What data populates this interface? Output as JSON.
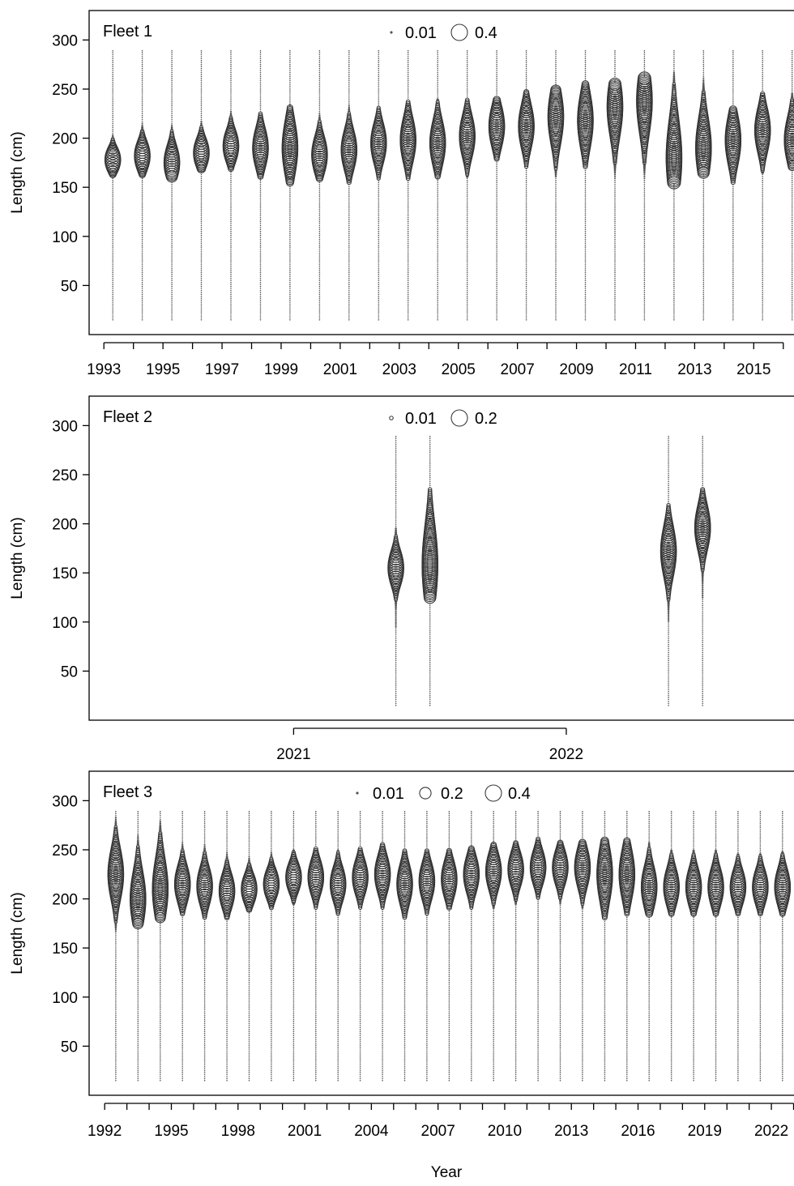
{
  "chart_data": [
    {
      "type": "scatter",
      "title": "Fleet 1",
      "ylabel": "Length (cm)",
      "xlabel": "",
      "ylim": [
        0,
        330
      ],
      "yticks": [
        50,
        100,
        150,
        200,
        250,
        300
      ],
      "xlim": [
        1992.5,
        2016.5
      ],
      "xtick_labels": [
        "1993",
        "1995",
        "1997",
        "1999",
        "2001",
        "2003",
        "2005",
        "2007",
        "2009",
        "2011",
        "2013",
        "2015"
      ],
      "xtick_values": [
        1993,
        1995,
        1997,
        1999,
        2001,
        2003,
        2005,
        2007,
        2009,
        2011,
        2013,
        2015
      ],
      "length_bins": [
        15,
        290
      ],
      "legend": {
        "entries": [
          {
            "label": "0.01",
            "value": 0.01
          },
          {
            "label": "0.4",
            "value": 0.4
          }
        ],
        "placement": "top-center"
      },
      "years": [
        {
          "x": 1993.3,
          "mode": 178,
          "sd": 8,
          "lo": 163,
          "hi": 222
        },
        {
          "x": 1994.3,
          "mode": 182,
          "sd": 10,
          "lo": 163,
          "hi": 230
        },
        {
          "x": 1995.3,
          "mode": 175,
          "sd": 12,
          "lo": 160,
          "hi": 230
        },
        {
          "x": 1996.3,
          "mode": 185,
          "sd": 10,
          "lo": 168,
          "hi": 225
        },
        {
          "x": 1997.3,
          "mode": 192,
          "sd": 11,
          "lo": 168,
          "hi": 228
        },
        {
          "x": 1998.3,
          "mode": 190,
          "sd": 14,
          "lo": 160,
          "hi": 225
        },
        {
          "x": 1999.3,
          "mode": 190,
          "sd": 20,
          "lo": 155,
          "hi": 232
        },
        {
          "x": 2000.3,
          "mode": 183,
          "sd": 13,
          "lo": 158,
          "hi": 235
        },
        {
          "x": 2001.3,
          "mode": 188,
          "sd": 14,
          "lo": 155,
          "hi": 238
        },
        {
          "x": 2002.3,
          "mode": 195,
          "sd": 14,
          "lo": 158,
          "hi": 232
        },
        {
          "x": 2003.3,
          "mode": 198,
          "sd": 16,
          "lo": 158,
          "hi": 238
        },
        {
          "x": 2004.3,
          "mode": 195,
          "sd": 16,
          "lo": 160,
          "hi": 240
        },
        {
          "x": 2005.3,
          "mode": 202,
          "sd": 15,
          "lo": 160,
          "hi": 240
        },
        {
          "x": 2006.3,
          "mode": 212,
          "sd": 15,
          "lo": 178,
          "hi": 240
        },
        {
          "x": 2007.3,
          "mode": 212,
          "sd": 16,
          "lo": 170,
          "hi": 248
        },
        {
          "x": 2008.3,
          "mode": 222,
          "sd": 20,
          "lo": 160,
          "hi": 250
        },
        {
          "x": 2009.3,
          "mode": 218,
          "sd": 20,
          "lo": 170,
          "hi": 255
        },
        {
          "x": 2010.3,
          "mode": 232,
          "sd": 22,
          "lo": 158,
          "hi": 255
        },
        {
          "x": 2011.3,
          "mode": 238,
          "sd": 24,
          "lo": 155,
          "hi": 262
        },
        {
          "x": 2012.3,
          "mode": 180,
          "sd": 28,
          "lo": 155,
          "hi": 268
        },
        {
          "x": 2013.3,
          "mode": 190,
          "sd": 22,
          "lo": 165,
          "hi": 262
        },
        {
          "x": 2014.3,
          "mode": 198,
          "sd": 18,
          "lo": 155,
          "hi": 230
        },
        {
          "x": 2015.3,
          "mode": 208,
          "sd": 16,
          "lo": 165,
          "hi": 245
        },
        {
          "x": 2016.3,
          "mode": 198,
          "sd": 16,
          "lo": 170,
          "hi": 245
        }
      ]
    },
    {
      "type": "scatter",
      "title": "Fleet 2",
      "ylabel": "Length (cm)",
      "xlabel": "",
      "ylim": [
        0,
        330
      ],
      "yticks": [
        50,
        100,
        150,
        200,
        250,
        300
      ],
      "xlim": [
        2020.25,
        2022.85
      ],
      "xtick_labels": [
        "2021",
        "2022"
      ],
      "xtick_values": [
        2021,
        2022
      ],
      "length_bins": [
        15,
        290
      ],
      "legend": {
        "entries": [
          {
            "label": "0.01",
            "value": 0.01
          },
          {
            "label": "0.2",
            "value": 0.2
          }
        ],
        "placement": "top-center"
      },
      "years": [
        {
          "x": 2021.375,
          "mode": 155,
          "sd": 12,
          "lo": 95,
          "hi": 195
        },
        {
          "x": 2021.5,
          "mode": 158,
          "sd": 30,
          "lo": 125,
          "hi": 235
        },
        {
          "x": 2022.375,
          "mode": 172,
          "sd": 18,
          "lo": 100,
          "hi": 220
        },
        {
          "x": 2022.5,
          "mode": 196,
          "sd": 16,
          "lo": 125,
          "hi": 235
        }
      ]
    },
    {
      "type": "scatter",
      "title": "Fleet 3",
      "ylabel": "Length (cm)",
      "xlabel": "Year",
      "ylim": [
        0,
        330
      ],
      "yticks": [
        50,
        100,
        150,
        200,
        250,
        300
      ],
      "xlim": [
        1991.3,
        2023.2
      ],
      "xtick_labels": [
        "1992",
        "1995",
        "1998",
        "2001",
        "2004",
        "2007",
        "2010",
        "2013",
        "2016",
        "2019",
        "2022"
      ],
      "xtick_values": [
        1992,
        1995,
        1998,
        2001,
        2004,
        2007,
        2010,
        2013,
        2016,
        2019,
        2022
      ],
      "length_bins": [
        15,
        290
      ],
      "legend": {
        "entries": [
          {
            "label": "0.01",
            "value": 0.01
          },
          {
            "label": "0.2",
            "value": 0.2
          },
          {
            "label": "0.4",
            "value": 0.4
          }
        ],
        "placement": "top-center"
      },
      "years": [
        {
          "x": 1992.5,
          "mode": 225,
          "sd": 18,
          "lo": 165,
          "hi": 285
        },
        {
          "x": 1993.5,
          "mode": 200,
          "sd": 20,
          "lo": 175,
          "hi": 280
        },
        {
          "x": 1994.5,
          "mode": 210,
          "sd": 22,
          "lo": 180,
          "hi": 280
        },
        {
          "x": 1995.5,
          "mode": 215,
          "sd": 13,
          "lo": 185,
          "hi": 265
        },
        {
          "x": 1996.5,
          "mode": 213,
          "sd": 13,
          "lo": 180,
          "hi": 255
        },
        {
          "x": 1997.5,
          "mode": 208,
          "sd": 12,
          "lo": 180,
          "hi": 250
        },
        {
          "x": 1998.5,
          "mode": 210,
          "sd": 10,
          "lo": 188,
          "hi": 245
        },
        {
          "x": 1999.5,
          "mode": 215,
          "sd": 10,
          "lo": 190,
          "hi": 248
        },
        {
          "x": 2000.5,
          "mode": 222,
          "sd": 10,
          "lo": 195,
          "hi": 250
        },
        {
          "x": 2001.5,
          "mode": 222,
          "sd": 12,
          "lo": 190,
          "hi": 252
        },
        {
          "x": 2002.5,
          "mode": 215,
          "sd": 12,
          "lo": 185,
          "hi": 250
        },
        {
          "x": 2003.5,
          "mode": 222,
          "sd": 12,
          "lo": 190,
          "hi": 252
        },
        {
          "x": 2004.5,
          "mode": 225,
          "sd": 13,
          "lo": 190,
          "hi": 255
        },
        {
          "x": 2005.5,
          "mode": 215,
          "sd": 14,
          "lo": 180,
          "hi": 250
        },
        {
          "x": 2006.5,
          "mode": 218,
          "sd": 13,
          "lo": 185,
          "hi": 250
        },
        {
          "x": 2007.5,
          "mode": 220,
          "sd": 13,
          "lo": 190,
          "hi": 250
        },
        {
          "x": 2008.5,
          "mode": 225,
          "sd": 13,
          "lo": 190,
          "hi": 252
        },
        {
          "x": 2009.5,
          "mode": 228,
          "sd": 13,
          "lo": 190,
          "hi": 255
        },
        {
          "x": 2010.5,
          "mode": 230,
          "sd": 12,
          "lo": 195,
          "hi": 258
        },
        {
          "x": 2011.5,
          "mode": 232,
          "sd": 12,
          "lo": 200,
          "hi": 262
        },
        {
          "x": 2012.5,
          "mode": 232,
          "sd": 12,
          "lo": 195,
          "hi": 258
        },
        {
          "x": 2013.5,
          "mode": 232,
          "sd": 14,
          "lo": 190,
          "hi": 258
        },
        {
          "x": 2014.5,
          "mode": 225,
          "sd": 20,
          "lo": 180,
          "hi": 260
        },
        {
          "x": 2015.5,
          "mode": 225,
          "sd": 18,
          "lo": 185,
          "hi": 260
        },
        {
          "x": 2016.5,
          "mode": 212,
          "sd": 15,
          "lo": 185,
          "hi": 258
        },
        {
          "x": 2017.5,
          "mode": 212,
          "sd": 13,
          "lo": 185,
          "hi": 250
        },
        {
          "x": 2018.5,
          "mode": 212,
          "sd": 13,
          "lo": 185,
          "hi": 250
        },
        {
          "x": 2019.5,
          "mode": 212,
          "sd": 13,
          "lo": 185,
          "hi": 250
        },
        {
          "x": 2020.5,
          "mode": 212,
          "sd": 12,
          "lo": 185,
          "hi": 245
        },
        {
          "x": 2021.5,
          "mode": 212,
          "sd": 12,
          "lo": 185,
          "hi": 245
        },
        {
          "x": 2022.5,
          "mode": 212,
          "sd": 13,
          "lo": 185,
          "hi": 248
        }
      ]
    }
  ]
}
